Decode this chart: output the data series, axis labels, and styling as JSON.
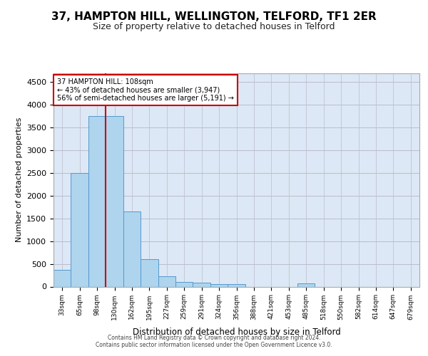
{
  "title": "37, HAMPTON HILL, WELLINGTON, TELFORD, TF1 2ER",
  "subtitle": "Size of property relative to detached houses in Telford",
  "xlabel": "Distribution of detached houses by size in Telford",
  "ylabel": "Number of detached properties",
  "footnote1": "Contains HM Land Registry data © Crown copyright and database right 2024.",
  "footnote2": "Contains public sector information licensed under the Open Government Licence v3.0.",
  "bin_labels": [
    "33sqm",
    "65sqm",
    "98sqm",
    "130sqm",
    "162sqm",
    "195sqm",
    "227sqm",
    "259sqm",
    "291sqm",
    "324sqm",
    "356sqm",
    "388sqm",
    "421sqm",
    "453sqm",
    "485sqm",
    "518sqm",
    "550sqm",
    "582sqm",
    "614sqm",
    "647sqm",
    "679sqm"
  ],
  "bar_values": [
    375,
    2500,
    3750,
    3750,
    1650,
    600,
    230,
    100,
    80,
    50,
    50,
    0,
    0,
    0,
    70,
    0,
    0,
    0,
    0,
    0,
    0
  ],
  "bar_color": "#aed4ee",
  "bar_edge_color": "#5599cc",
  "vline_position": 2.5,
  "vline_color": "#cc0000",
  "annotation_line1": "37 HAMPTON HILL: 108sqm",
  "annotation_line2": "← 43% of detached houses are smaller (3,947)",
  "annotation_line3": "56% of semi-detached houses are larger (5,191) →",
  "annotation_box_facecolor": "white",
  "annotation_box_edgecolor": "#cc0000",
  "ylim": [
    0,
    4700
  ],
  "yticks": [
    0,
    500,
    1000,
    1500,
    2000,
    2500,
    3000,
    3500,
    4000,
    4500
  ],
  "bg_color": "#dce8f5",
  "grid_color": "#bbbbcc"
}
